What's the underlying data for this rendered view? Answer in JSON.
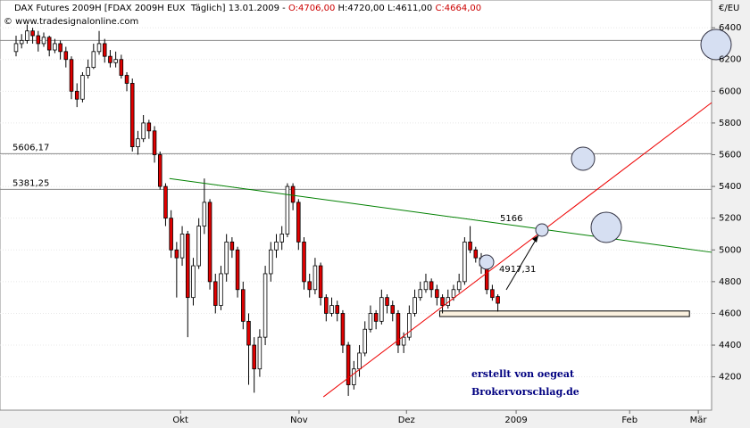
{
  "chart_data": {
    "type": "candlestick",
    "title_parts": [
      "DAX Futures 2009H [FDAX 2009H EUX  Täglich] 13.01.2009 - ",
      "O:4706,00",
      " H:4720,00 L:4611,00 ",
      "C:4664,00"
    ],
    "title_colors": [
      "#000000",
      "#cc0000",
      "#000000",
      "#cc0000"
    ],
    "copyright": "© www.tradesignalonline.com",
    "y_label": "€/EU",
    "annotations": [
      "erstellt von oegeat",
      "Brokervorschlag.de"
    ],
    "up_color": "#ffffff",
    "down_color": "#e00000",
    "xlim": [
      -2.9,
      125.6
    ],
    "ylim": [
      3990,
      6575
    ],
    "yticks": [
      4200,
      4400,
      4600,
      4800,
      5000,
      5200,
      5400,
      5600,
      5800,
      6000,
      6200,
      6400
    ],
    "xticks": [
      {
        "value": 29.7,
        "label": "Okt"
      },
      {
        "value": 51.1,
        "label": "Nov"
      },
      {
        "value": 70.5,
        "label": "Dez"
      },
      {
        "value": 90.3,
        "label": "2009"
      },
      {
        "value": 110.8,
        "label": "Feb"
      },
      {
        "value": 123.2,
        "label": "Mär"
      }
    ],
    "grid": true,
    "hlines": [
      {
        "value": 6320
      },
      {
        "value": 5606.17,
        "label": "5606,17"
      },
      {
        "value": 5381.25,
        "label": "5381,25"
      }
    ],
    "trendlines": [
      {
        "from": [
          27.7,
          5450
        ],
        "to": [
          125.6,
          4985
        ],
        "color": "#008000",
        "label": "5166"
      },
      {
        "from": [
          55.5,
          4074
        ],
        "to": [
          125.6,
          5928
        ],
        "color": "#ee0000",
        "label": "4917,31"
      }
    ],
    "support_zone": {
      "from": 76.5,
      "to": 121.6,
      "low": 4580,
      "high": 4615
    },
    "categories": [
      null,
      null,
      null,
      null,
      null,
      null,
      null,
      null,
      null,
      null,
      null,
      null,
      null,
      null,
      null,
      null,
      null,
      null,
      null,
      null,
      null,
      null,
      null,
      null,
      null,
      null,
      null,
      null,
      null,
      null,
      null,
      null,
      null,
      null,
      null,
      null,
      null,
      null,
      null,
      null,
      null,
      null,
      null,
      null,
      null,
      null,
      null,
      null,
      null,
      null,
      null,
      null,
      null,
      null,
      null,
      null,
      null,
      null,
      null,
      null,
      null,
      null,
      null,
      null,
      null,
      null,
      null,
      null,
      null,
      null,
      null,
      null,
      null,
      null,
      null,
      null,
      null,
      null,
      null,
      null,
      null,
      null,
      null,
      null,
      null,
      null,
      null,
      null
    ],
    "candles": [
      [
        6250,
        6350,
        6220,
        6300
      ],
      [
        6300,
        6360,
        6270,
        6320
      ],
      [
        6320,
        6420,
        6300,
        6380
      ],
      [
        6380,
        6400,
        6300,
        6350
      ],
      [
        6350,
        6380,
        6250,
        6300
      ],
      [
        6300,
        6370,
        6280,
        6340
      ],
      [
        6340,
        6350,
        6220,
        6260
      ],
      [
        6260,
        6330,
        6240,
        6300
      ],
      [
        6300,
        6320,
        6200,
        6250
      ],
      [
        6250,
        6280,
        6150,
        6200
      ],
      [
        6200,
        6220,
        5950,
        6000
      ],
      [
        6000,
        6050,
        5900,
        5950
      ],
      [
        5950,
        6120,
        5930,
        6100
      ],
      [
        6100,
        6200,
        6080,
        6150
      ],
      [
        6150,
        6300,
        6140,
        6250
      ],
      [
        6250,
        6380,
        6230,
        6300
      ],
      [
        6300,
        6330,
        6180,
        6220
      ],
      [
        6220,
        6260,
        6150,
        6180
      ],
      [
        6180,
        6250,
        6150,
        6200
      ],
      [
        6200,
        6230,
        6080,
        6100
      ],
      [
        6100,
        6120,
        6000,
        6050
      ],
      [
        6050,
        6080,
        5620,
        5650
      ],
      [
        5650,
        5750,
        5600,
        5700
      ],
      [
        5700,
        5850,
        5680,
        5800
      ],
      [
        5800,
        5820,
        5700,
        5750
      ],
      [
        5750,
        5780,
        5550,
        5600
      ],
      [
        5600,
        5620,
        5380,
        5400
      ],
      [
        5400,
        5420,
        5150,
        5200
      ],
      [
        5200,
        5250,
        4950,
        5000
      ],
      [
        5000,
        5050,
        4700,
        4950
      ],
      [
        4950,
        5150,
        4900,
        5100
      ],
      [
        5100,
        5120,
        4450,
        4700
      ],
      [
        4700,
        4950,
        4650,
        4900
      ],
      [
        4900,
        5200,
        4880,
        5150
      ],
      [
        5150,
        5450,
        5100,
        5300
      ],
      [
        5300,
        5320,
        4750,
        4800
      ],
      [
        4800,
        4850,
        4600,
        4650
      ],
      [
        4650,
        4900,
        4620,
        4850
      ],
      [
        4850,
        5100,
        4800,
        5050
      ],
      [
        5050,
        5080,
        4950,
        5000
      ],
      [
        5000,
        5020,
        4700,
        4750
      ],
      [
        4750,
        4800,
        4500,
        4550
      ],
      [
        4550,
        4600,
        4150,
        4400
      ],
      [
        4400,
        4450,
        4100,
        4250
      ],
      [
        4250,
        4500,
        4200,
        4450
      ],
      [
        4450,
        4900,
        4400,
        4850
      ],
      [
        4850,
        5050,
        4800,
        5000
      ],
      [
        5000,
        5100,
        4950,
        5050
      ],
      [
        5050,
        5150,
        5000,
        5100
      ],
      [
        5100,
        5420,
        5080,
        5400
      ],
      [
        5400,
        5420,
        5250,
        5300
      ],
      [
        5300,
        5320,
        5000,
        5050
      ],
      [
        5050,
        5080,
        4750,
        4800
      ],
      [
        4800,
        4850,
        4700,
        4750
      ],
      [
        4750,
        4950,
        4720,
        4900
      ],
      [
        4900,
        4920,
        4650,
        4700
      ],
      [
        4700,
        4720,
        4550,
        4600
      ],
      [
        4600,
        4700,
        4580,
        4650
      ],
      [
        4650,
        4680,
        4550,
        4600
      ],
      [
        4600,
        4620,
        4350,
        4400
      ],
      [
        4400,
        4420,
        4080,
        4150
      ],
      [
        4150,
        4300,
        4120,
        4250
      ],
      [
        4250,
        4400,
        4200,
        4350
      ],
      [
        4350,
        4550,
        4330,
        4500
      ],
      [
        4500,
        4650,
        4480,
        4600
      ],
      [
        4600,
        4620,
        4500,
        4550
      ],
      [
        4550,
        4750,
        4530,
        4700
      ],
      [
        4700,
        4720,
        4600,
        4650
      ],
      [
        4650,
        4680,
        4550,
        4600
      ],
      [
        4600,
        4620,
        4350,
        4400
      ],
      [
        4400,
        4480,
        4350,
        4450
      ],
      [
        4450,
        4650,
        4430,
        4600
      ],
      [
        4600,
        4750,
        4580,
        4700
      ],
      [
        4700,
        4800,
        4680,
        4750
      ],
      [
        4750,
        4850,
        4730,
        4800
      ],
      [
        4800,
        4820,
        4700,
        4750
      ],
      [
        4750,
        4780,
        4650,
        4700
      ],
      [
        4700,
        4720,
        4600,
        4650
      ],
      [
        4650,
        4750,
        4630,
        4700
      ],
      [
        4700,
        4780,
        4680,
        4750
      ],
      [
        4750,
        4850,
        4730,
        4800
      ],
      [
        4800,
        5080,
        4780,
        5050
      ],
      [
        5050,
        5150,
        4980,
        5000
      ],
      [
        5000,
        5020,
        4920,
        4950
      ],
      [
        4950,
        4980,
        4850,
        4900
      ],
      [
        4900,
        4920,
        4720,
        4750
      ],
      [
        4750,
        4780,
        4680,
        4700
      ],
      [
        4706,
        4720,
        4611,
        4664
      ]
    ]
  }
}
